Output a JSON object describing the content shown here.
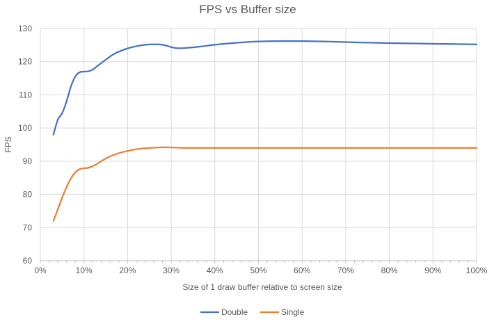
{
  "chart_data": {
    "type": "line",
    "title": "FPS vs Buffer size",
    "xlabel": "Size of 1 draw buffer relative to screen size",
    "ylabel": "FPS",
    "xlim": [
      0,
      100
    ],
    "ylim": [
      60,
      130
    ],
    "x_tick_labels": [
      "0%",
      "10%",
      "20%",
      "30%",
      "40%",
      "50%",
      "60%",
      "70%",
      "80%",
      "90%",
      "100%"
    ],
    "x_tick_values": [
      0,
      10,
      20,
      30,
      40,
      50,
      60,
      70,
      80,
      90,
      100
    ],
    "x_minor_tick_step_pct": 2,
    "y_ticks": [
      60,
      70,
      80,
      90,
      100,
      110,
      120,
      130
    ],
    "grid": true,
    "smooth_lines": true,
    "markers": false,
    "legend_position": "bottom-center",
    "series": [
      {
        "name": "Double",
        "color": "#4472C4",
        "points": [
          [
            3,
            98
          ],
          [
            4,
            102.5
          ],
          [
            5,
            104.5
          ],
          [
            6,
            108
          ],
          [
            7,
            112.5
          ],
          [
            8,
            115.5
          ],
          [
            9,
            116.8
          ],
          [
            10,
            117
          ],
          [
            11,
            117.1
          ],
          [
            12,
            117.6
          ],
          [
            13,
            118.6
          ],
          [
            15,
            120.6
          ],
          [
            17,
            122.4
          ],
          [
            20,
            124
          ],
          [
            23,
            124.9
          ],
          [
            25,
            125.2
          ],
          [
            28,
            125.1
          ],
          [
            31,
            124.1
          ],
          [
            34,
            124.2
          ],
          [
            37,
            124.6
          ],
          [
            40,
            125.1
          ],
          [
            45,
            125.7
          ],
          [
            50,
            126.1
          ],
          [
            55,
            126.2
          ],
          [
            60,
            126.2
          ],
          [
            65,
            126.1
          ],
          [
            70,
            125.9
          ],
          [
            80,
            125.6
          ],
          [
            90,
            125.4
          ],
          [
            100,
            125.2
          ]
        ]
      },
      {
        "name": "Single",
        "color": "#ED7D31",
        "points": [
          [
            3,
            72
          ],
          [
            4,
            75.5
          ],
          [
            5,
            79
          ],
          [
            6,
            82.2
          ],
          [
            7,
            84.8
          ],
          [
            8,
            86.6
          ],
          [
            9,
            87.6
          ],
          [
            10,
            87.9
          ],
          [
            11,
            88
          ],
          [
            12,
            88.5
          ],
          [
            13,
            89.2
          ],
          [
            15,
            90.8
          ],
          [
            17,
            92
          ],
          [
            20,
            93.1
          ],
          [
            23,
            93.8
          ],
          [
            25,
            94
          ],
          [
            28,
            94.2
          ],
          [
            31,
            94.1
          ],
          [
            34,
            94
          ],
          [
            37,
            94
          ],
          [
            40,
            94
          ],
          [
            45,
            94
          ],
          [
            50,
            94
          ],
          [
            55,
            94
          ],
          [
            60,
            94
          ],
          [
            65,
            94
          ],
          [
            70,
            94
          ],
          [
            80,
            94
          ],
          [
            90,
            94
          ],
          [
            100,
            94
          ]
        ]
      }
    ],
    "colors": {
      "text": "#595959",
      "gridline": "#D9D9D9",
      "axis_line": "#BFBFBF",
      "background": "#FFFFFF"
    }
  }
}
